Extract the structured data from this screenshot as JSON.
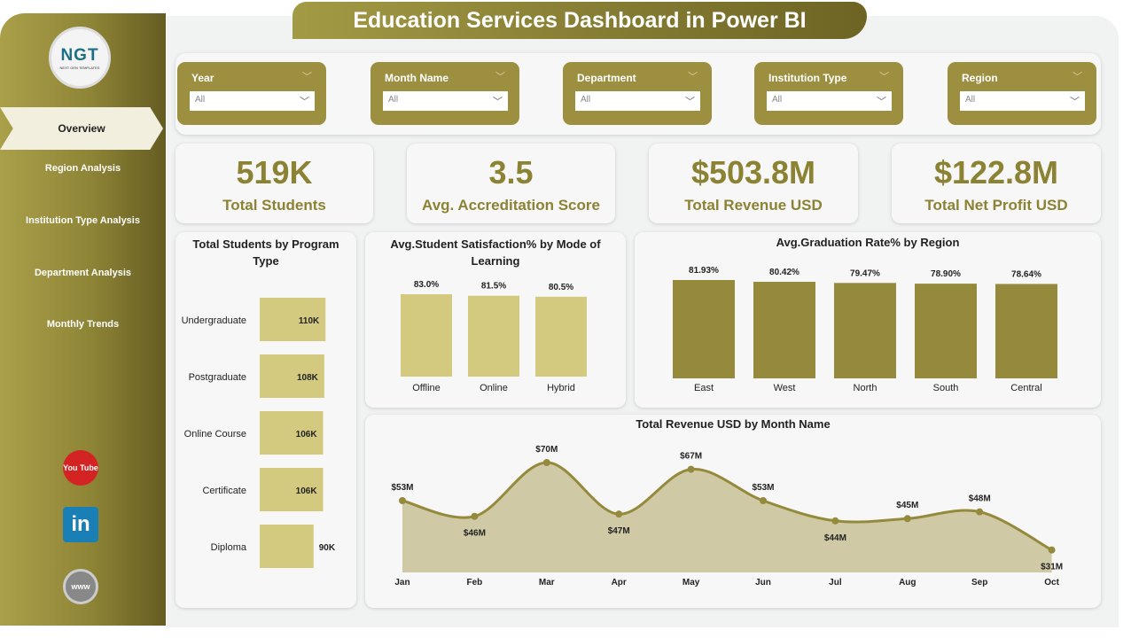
{
  "title": "Education Services Dashboard in Power BI",
  "logo": {
    "text": "NGT",
    "subtitle": "NEXT GEN TEMPLATES"
  },
  "nav": [
    {
      "label": "Overview",
      "active": true
    },
    {
      "label": "Region Analysis"
    },
    {
      "label": "Institution Type Analysis"
    },
    {
      "label": "Department Analysis"
    },
    {
      "label": "Monthly Trends"
    }
  ],
  "social": [
    {
      "icon": "youtube-icon",
      "label": "You Tube"
    },
    {
      "icon": "linkedin-icon",
      "label": "in"
    },
    {
      "icon": "globe-icon",
      "label": "www"
    }
  ],
  "filters": [
    {
      "label": "Year",
      "value": "All"
    },
    {
      "label": "Month Name",
      "value": "All"
    },
    {
      "label": "Department",
      "value": "All"
    },
    {
      "label": "Institution Type",
      "value": "All"
    },
    {
      "label": "Region",
      "value": "All"
    }
  ],
  "kpis": [
    {
      "value": "519K",
      "label": "Total Students"
    },
    {
      "value": "3.5",
      "label": "Avg. Accreditation Score"
    },
    {
      "value": "$503.8M",
      "label": "Total Revenue USD"
    },
    {
      "value": "$122.8M",
      "label": "Total Net Profit USD"
    }
  ],
  "colors": {
    "accent": "#8c8233",
    "bar_light": "#d3ca7f",
    "bar_dark": "#958a3c",
    "area": "#cfcaa5"
  },
  "chart_data": [
    {
      "type": "bar",
      "orientation": "horizontal",
      "title": "Total Students by Program Type",
      "categories": [
        "Undergraduate",
        "Postgraduate",
        "Online Course",
        "Certificate",
        "Diploma"
      ],
      "values": [
        110,
        108,
        106,
        106,
        90
      ],
      "labels": [
        "110K",
        "108K",
        "106K",
        "106K",
        "90K"
      ]
    },
    {
      "type": "bar",
      "title": "Avg.Student Satisfaction% by Mode of Learning",
      "categories": [
        "Offline",
        "Online",
        "Hybrid"
      ],
      "values": [
        83.0,
        81.5,
        80.5
      ],
      "labels": [
        "83.0%",
        "81.5%",
        "80.5%"
      ]
    },
    {
      "type": "bar",
      "title": "Avg.Graduation Rate% by Region",
      "categories": [
        "East",
        "West",
        "North",
        "South",
        "Central"
      ],
      "values": [
        81.93,
        80.42,
        79.47,
        78.9,
        78.64
      ],
      "labels": [
        "81.93%",
        "80.42%",
        "79.47%",
        "78.90%",
        "78.64%"
      ]
    },
    {
      "type": "area",
      "title": "Total Revenue USD by Month Name",
      "categories": [
        "Jan",
        "Feb",
        "Mar",
        "Apr",
        "May",
        "Jun",
        "Jul",
        "Aug",
        "Sep",
        "Oct"
      ],
      "values": [
        53,
        46,
        70,
        47,
        67,
        53,
        44,
        45,
        48,
        31
      ],
      "labels": [
        "$53M",
        "$46M",
        "$70M",
        "$47M",
        "$67M",
        "$53M",
        "$44M",
        "$45M",
        "$48M",
        "$31M"
      ]
    }
  ]
}
